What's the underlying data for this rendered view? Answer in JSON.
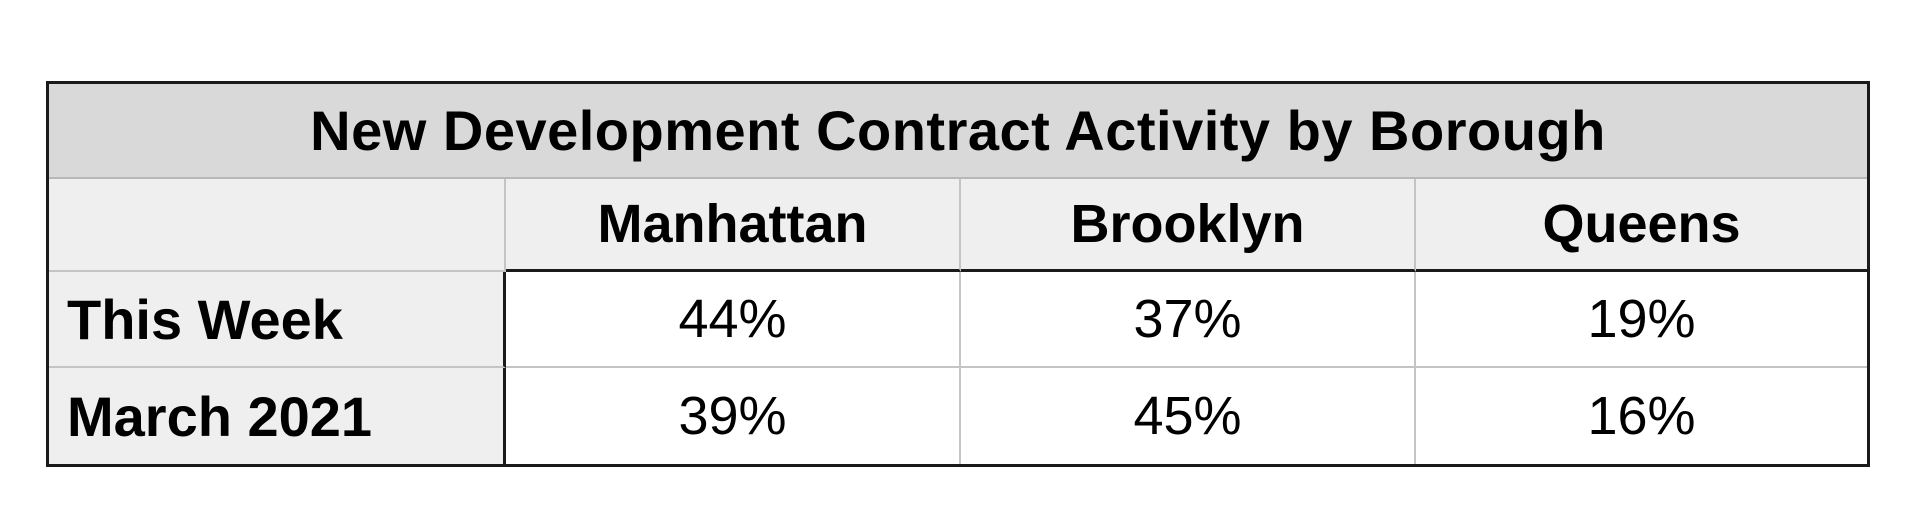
{
  "chart_data": {
    "type": "table",
    "title": "New Development Contract Activity by Borough",
    "columns": [
      "Manhattan",
      "Brooklyn",
      "Queens"
    ],
    "rows": [
      {
        "label": "This Week",
        "values": [
          "44%",
          "37%",
          "19%"
        ]
      },
      {
        "label": "March 2021",
        "values": [
          "39%",
          "45%",
          "16%"
        ]
      }
    ]
  }
}
